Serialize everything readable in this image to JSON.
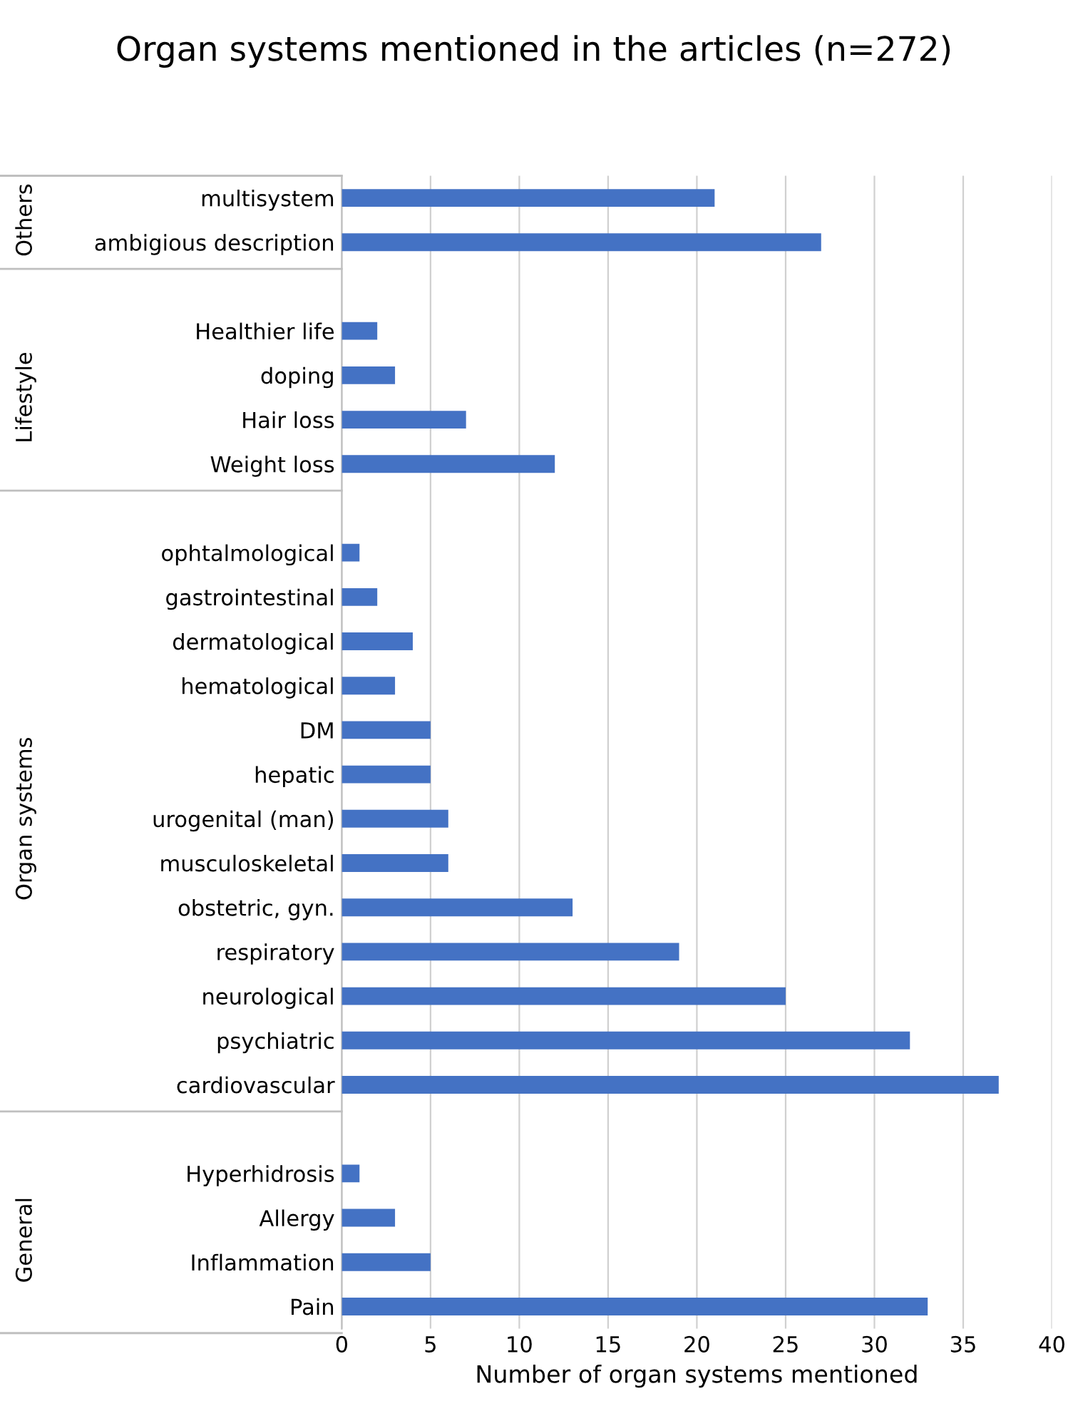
{
  "chart_data": {
    "type": "bar",
    "orientation": "horizontal",
    "title": "Organ systems mentioned in the articles (n=272)",
    "xlabel": "Number of organ systems mentioned",
    "categories": [
      "multisystem",
      "ambigious description",
      null,
      "Healthier life",
      "doping",
      "Hair loss",
      "Weight loss",
      null,
      "ophtalmological",
      "gastrointestinal",
      "dermatological",
      "hematological",
      "DM",
      "hepatic",
      "urogenital (man)",
      "musculoskeletal",
      "obstetric, gyn.",
      "respiratory",
      "neurological",
      "psychiatric",
      "cardiovascular",
      null,
      "Hyperhidrosis",
      "Allergy",
      "Inflammation",
      "Pain"
    ],
    "values": [
      21,
      27,
      null,
      2,
      3,
      7,
      12,
      null,
      1,
      2,
      4,
      3,
      5,
      5,
      6,
      6,
      13,
      19,
      25,
      32,
      37,
      null,
      1,
      3,
      5,
      33
    ],
    "color": "#4472c4",
    "xlim": [
      0,
      40
    ],
    "xticks": [
      0,
      5,
      10,
      15,
      20,
      25,
      30,
      35,
      40
    ],
    "grid": "x",
    "annotations": [
      "Others",
      "Lifestyle",
      "Organ systems",
      "General"
    ]
  }
}
